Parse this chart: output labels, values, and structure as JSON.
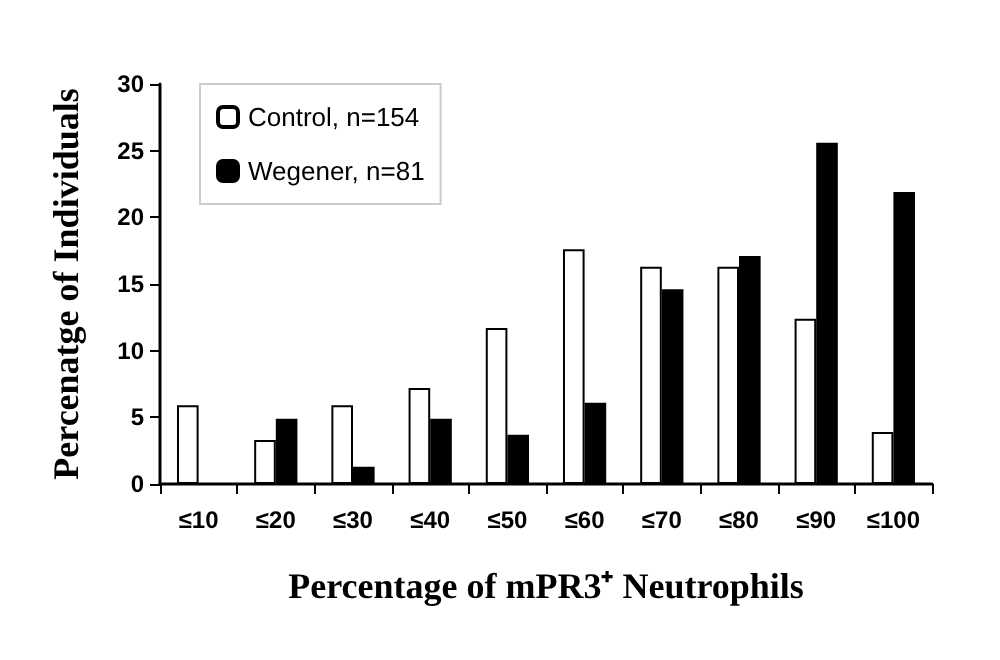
{
  "chart_data": {
    "type": "bar",
    "xlabel": "Percentage of mPR3⁺ Neutrophils",
    "ylabel": "Percenatge of Individuals",
    "categories": [
      "≤10",
      "≤20",
      "≤30",
      "≤40",
      "≤50",
      "≤60",
      "≤70",
      "≤80",
      "≤90",
      "≤100"
    ],
    "series": [
      {
        "name": "Control, n=154",
        "color": "#ffffff",
        "values": [
          5.9,
          3.3,
          5.9,
          7.2,
          11.7,
          17.6,
          16.3,
          16.3,
          12.4,
          3.9
        ]
      },
      {
        "name": "Wegener, n=81",
        "color": "#000000",
        "values": [
          0,
          4.9,
          1.3,
          4.9,
          3.7,
          6.1,
          14.6,
          17.1,
          25.6,
          21.9
        ]
      }
    ],
    "ylim": [
      0,
      30
    ],
    "yticks": [
      0,
      5,
      10,
      15,
      20,
      25,
      30
    ],
    "grid": false,
    "legend": "top left"
  }
}
